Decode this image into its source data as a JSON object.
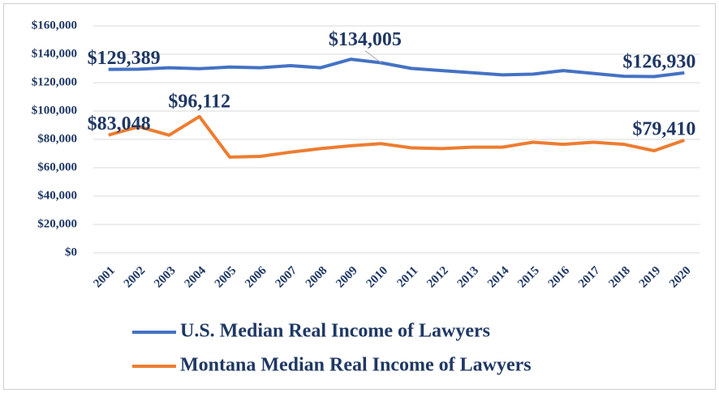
{
  "chart_data": {
    "type": "line",
    "categories": [
      "2001",
      "2002",
      "2003",
      "2004",
      "2005",
      "2006",
      "2007",
      "2008",
      "2009",
      "2010",
      "2011",
      "2012",
      "2013",
      "2014",
      "2015",
      "2016",
      "2017",
      "2018",
      "2019",
      "2020"
    ],
    "series": [
      {
        "name": "U.S. Median Real Income of Lawyers",
        "color": "#4472c4",
        "values": [
          129389,
          129500,
          130500,
          129800,
          131000,
          130500,
          132000,
          130500,
          136500,
          134005,
          130000,
          128500,
          127000,
          125500,
          126000,
          128500,
          126500,
          124500,
          124300,
          126930
        ],
        "value_labels": [
          "$129,389",
          null,
          null,
          null,
          null,
          null,
          null,
          null,
          null,
          "$134,005",
          null,
          null,
          null,
          null,
          null,
          null,
          null,
          null,
          null,
          "$126,930"
        ]
      },
      {
        "name": "Montana Median Real Income of Lawyers",
        "color": "#ed7d31",
        "values": [
          83048,
          89000,
          83000,
          96112,
          67500,
          68000,
          71000,
          73500,
          75500,
          77000,
          74000,
          73500,
          74500,
          74500,
          78000,
          76500,
          78000,
          76500,
          72000,
          79410
        ],
        "value_labels": [
          "$83,048",
          null,
          null,
          "$96,112",
          null,
          null,
          null,
          null,
          null,
          null,
          null,
          null,
          null,
          null,
          null,
          null,
          null,
          null,
          null,
          "$79,410"
        ]
      }
    ],
    "ylim": [
      0,
      160000
    ],
    "yticks": [
      {
        "value": 0,
        "label": "$0"
      },
      {
        "value": 20000,
        "label": "$20,000"
      },
      {
        "value": 40000,
        "label": "$40,000"
      },
      {
        "value": 60000,
        "label": "$60,000"
      },
      {
        "value": 80000,
        "label": "$80,000"
      },
      {
        "value": 100000,
        "label": "$100,000"
      },
      {
        "value": 120000,
        "label": "$120,000"
      },
      {
        "value": 140000,
        "label": "$140,000"
      },
      {
        "value": 160000,
        "label": "$160,000"
      }
    ],
    "grid": true,
    "legend": "bottom"
  }
}
